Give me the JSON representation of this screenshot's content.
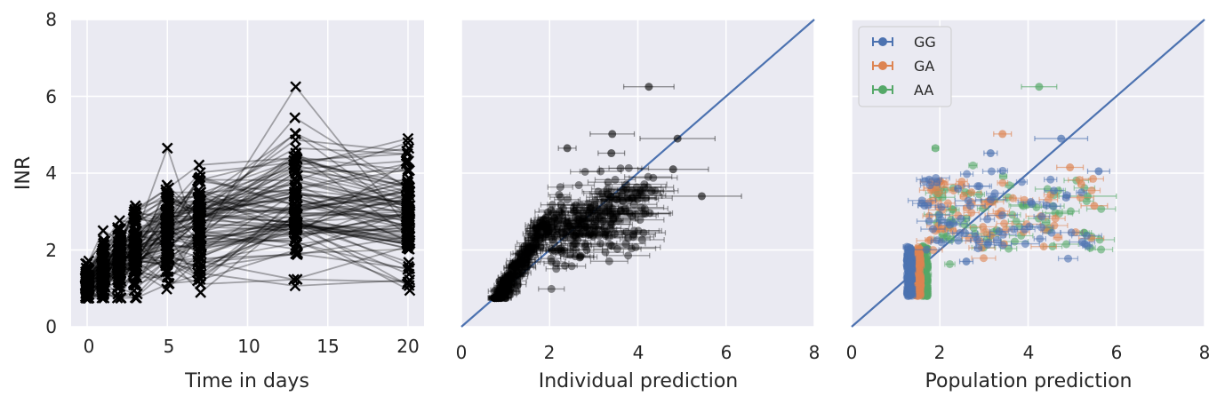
{
  "colors": {
    "panel_bg": "#eaeaf2",
    "grid": "#ffffff",
    "trajectory": "#000000",
    "identity_line": "#4c72b0",
    "GG": "#4c72b0",
    "GA": "#dd8452",
    "AA": "#55a868"
  },
  "chart_data": [
    {
      "type": "line",
      "xlabel": "Time in days",
      "ylabel": "INR",
      "xlim": [
        -1,
        21
      ],
      "ylim": [
        0,
        8
      ],
      "x_ticks": [
        "0",
        "5",
        "10",
        "15",
        "20"
      ],
      "y_ticks": [
        "0",
        "2",
        "4",
        "6",
        "8"
      ],
      "grid": true,
      "marker": "x",
      "observation_days": [
        0,
        1,
        2,
        3,
        5,
        7,
        13,
        20
      ],
      "n_patients": 100,
      "mean_inr_by_day": [
        1.1,
        1.5,
        1.75,
        2.0,
        2.45,
        2.6,
        3.1,
        3.0
      ],
      "highlighted_points": [
        {
          "x": 5,
          "y": 4.65
        },
        {
          "x": 13,
          "y": 6.25
        },
        {
          "x": 13,
          "y": 5.02
        },
        {
          "x": 13,
          "y": 4.52
        },
        {
          "x": 20,
          "y": 4.9
        }
      ]
    },
    {
      "type": "scatter",
      "xlabel": "Individual prediction",
      "ylabel": "",
      "xlim": [
        0,
        8
      ],
      "ylim": [
        0,
        8
      ],
      "x_ticks": [
        "0",
        "2",
        "4",
        "6",
        "8"
      ],
      "grid": true,
      "identity_line": true,
      "error_bars": "horizontal",
      "sample_points": [
        {
          "x": 4.25,
          "y": 6.25,
          "xerr": 0.57
        },
        {
          "x": 3.42,
          "y": 5.02,
          "xerr": 0.5
        },
        {
          "x": 4.9,
          "y": 4.9,
          "xerr": 0.85
        },
        {
          "x": 2.4,
          "y": 4.65,
          "xerr": 0.2
        },
        {
          "x": 3.4,
          "y": 4.52,
          "xerr": 0.3
        },
        {
          "x": 5.45,
          "y": 3.4,
          "xerr": 0.9
        },
        {
          "x": 4.8,
          "y": 4.1,
          "xerr": 0.8
        },
        {
          "x": 3.9,
          "y": 2.4,
          "xerr": 0.5
        },
        {
          "x": 2.7,
          "y": 1.85,
          "xerr": 0.3
        }
      ]
    },
    {
      "type": "scatter",
      "xlabel": "Population prediction",
      "ylabel": "",
      "xlim": [
        0,
        8
      ],
      "ylim": [
        0,
        8
      ],
      "x_ticks": [
        "0",
        "2",
        "4",
        "6",
        "8"
      ],
      "grid": true,
      "identity_line": true,
      "error_bars": "horizontal",
      "legend": "top-left",
      "series": [
        {
          "name": "GG",
          "color": "#4c72b0",
          "sample_points": [
            {
              "x": 4.75,
              "y": 4.9,
              "xerr": 0.6
            },
            {
              "x": 5.6,
              "y": 4.05,
              "xerr": 0.25
            },
            {
              "x": 3.15,
              "y": 4.52,
              "xerr": 0.15
            },
            {
              "x": 2.6,
              "y": 1.7,
              "xerr": 0.15
            }
          ]
        },
        {
          "name": "GA",
          "color": "#dd8452",
          "sample_points": [
            {
              "x": 3.42,
              "y": 5.02,
              "xerr": 0.2
            },
            {
              "x": 4.95,
              "y": 4.15,
              "xerr": 0.3
            },
            {
              "x": 5.5,
              "y": 3.15,
              "xerr": 0.3
            }
          ]
        },
        {
          "name": "AA",
          "color": "#55a868",
          "sample_points": [
            {
              "x": 4.25,
              "y": 6.25,
              "xerr": 0.4
            },
            {
              "x": 1.9,
              "y": 4.65,
              "xerr": 0.07
            },
            {
              "x": 5.35,
              "y": 3.4,
              "xerr": 0.65
            }
          ]
        }
      ]
    }
  ]
}
